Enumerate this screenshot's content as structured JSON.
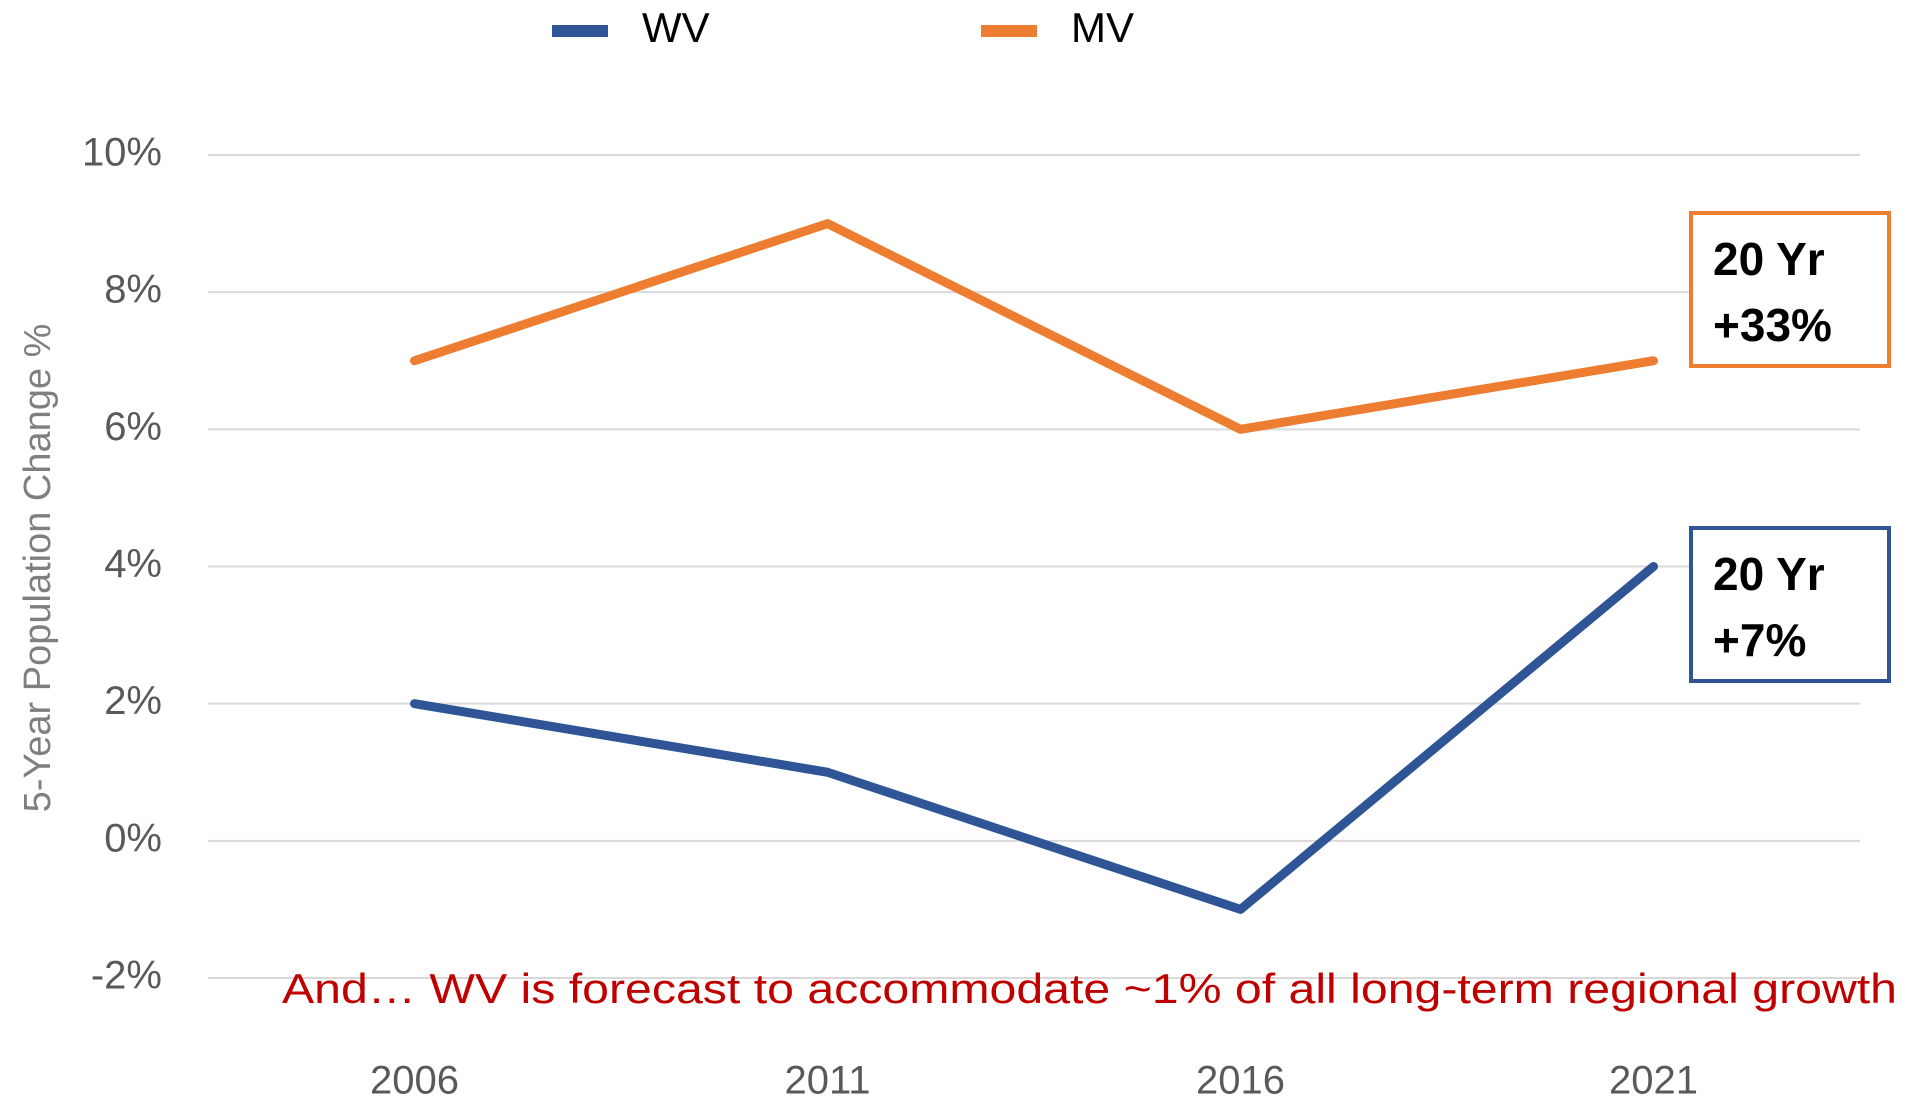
{
  "chart_data": {
    "type": "line",
    "y_label": "5-Year Population Change %",
    "categories": [
      "2006",
      "2011",
      "2016",
      "2021"
    ],
    "series": [
      {
        "name": "WV",
        "color": "#2F5597",
        "values": [
          2,
          1,
          -1,
          4
        ]
      },
      {
        "name": "MV",
        "color": "#ED7D31",
        "values": [
          7,
          9,
          6,
          7
        ]
      }
    ],
    "ylim": [
      -2,
      10
    ],
    "yticks": [
      {
        "value": -2,
        "label": "-2%"
      },
      {
        "value": 0,
        "label": "0%"
      },
      {
        "value": 2,
        "label": "2%"
      },
      {
        "value": 4,
        "label": "4%"
      },
      {
        "value": 6,
        "label": "6%"
      },
      {
        "value": 8,
        "label": "8%"
      },
      {
        "value": 10,
        "label": "10%"
      }
    ],
    "grid": true,
    "legend": "top",
    "annotations": [
      {
        "lines": [
          "20 Yr",
          "+33%"
        ],
        "color": "#ED7D31"
      },
      {
        "lines": [
          "20 Yr",
          "+7%"
        ],
        "color": "#2F5597"
      }
    ],
    "note": {
      "text": "And… WV is forecast to accommodate ~1% of all long-term regional growth",
      "color": "#C00000"
    }
  }
}
